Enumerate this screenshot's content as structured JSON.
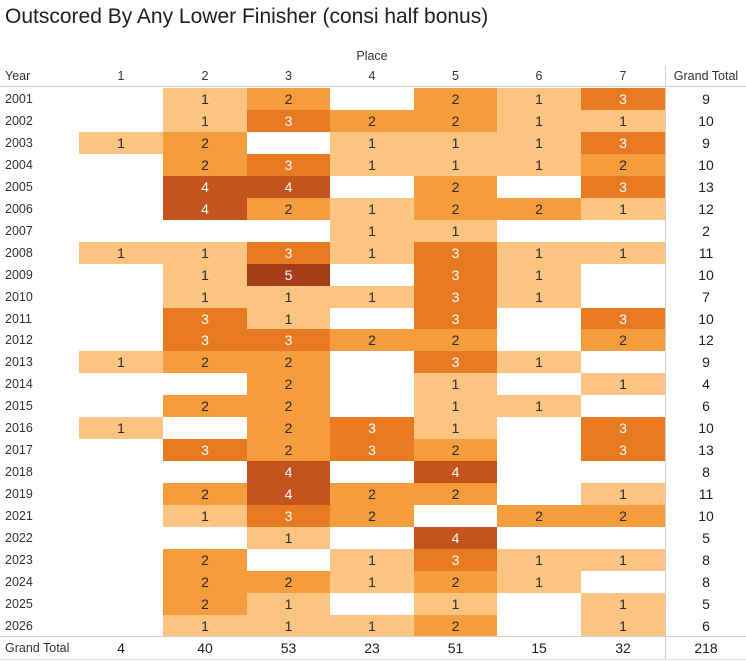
{
  "chart_data": {
    "type": "heatmap",
    "title": "Outscored By Any Lower Finisher (consi half bonus)",
    "x_axis_label": "Place",
    "y_axis_label": "Year",
    "grand_total_label": "Grand Total",
    "columns": [
      "1",
      "2",
      "3",
      "4",
      "5",
      "6",
      "7"
    ],
    "rows": [
      "2001",
      "2002",
      "2003",
      "2004",
      "2005",
      "2006",
      "2007",
      "2008",
      "2009",
      "2010",
      "2011",
      "2012",
      "2013",
      "2014",
      "2015",
      "2016",
      "2017",
      "2018",
      "2019",
      "2021",
      "2022",
      "2023",
      "2024",
      "2025",
      "2026"
    ],
    "values": [
      [
        null,
        1,
        2,
        null,
        2,
        1,
        3
      ],
      [
        null,
        1,
        3,
        2,
        2,
        1,
        1
      ],
      [
        1,
        2,
        null,
        1,
        1,
        1,
        3
      ],
      [
        null,
        2,
        3,
        1,
        1,
        1,
        2
      ],
      [
        null,
        4,
        4,
        null,
        2,
        null,
        3
      ],
      [
        null,
        4,
        2,
        1,
        2,
        2,
        1
      ],
      [
        null,
        null,
        null,
        1,
        1,
        null,
        null
      ],
      [
        1,
        1,
        3,
        1,
        3,
        1,
        1
      ],
      [
        null,
        1,
        5,
        null,
        3,
        1,
        null
      ],
      [
        null,
        1,
        1,
        1,
        3,
        1,
        null
      ],
      [
        null,
        3,
        1,
        null,
        3,
        null,
        3
      ],
      [
        null,
        3,
        3,
        2,
        2,
        null,
        2
      ],
      [
        1,
        2,
        2,
        null,
        3,
        1,
        null
      ],
      [
        null,
        null,
        2,
        null,
        1,
        null,
        1
      ],
      [
        null,
        2,
        2,
        null,
        1,
        1,
        null
      ],
      [
        1,
        null,
        2,
        3,
        1,
        null,
        3
      ],
      [
        null,
        3,
        2,
        3,
        2,
        null,
        3
      ],
      [
        null,
        null,
        4,
        null,
        4,
        null,
        null
      ],
      [
        null,
        2,
        4,
        2,
        2,
        null,
        1
      ],
      [
        null,
        1,
        3,
        2,
        null,
        2,
        2
      ],
      [
        null,
        null,
        1,
        null,
        4,
        null,
        null
      ],
      [
        null,
        2,
        null,
        1,
        3,
        1,
        1
      ],
      [
        null,
        2,
        2,
        1,
        2,
        1,
        null
      ],
      [
        null,
        2,
        1,
        null,
        1,
        null,
        1
      ],
      [
        null,
        1,
        1,
        1,
        2,
        null,
        1
      ]
    ],
    "row_totals": [
      9,
      10,
      9,
      10,
      13,
      12,
      2,
      11,
      10,
      7,
      10,
      12,
      9,
      4,
      6,
      10,
      13,
      8,
      11,
      10,
      5,
      8,
      8,
      5,
      6
    ],
    "column_totals": [
      4,
      40,
      53,
      23,
      51,
      15,
      32
    ],
    "grand_total": 218,
    "color_scale_legend": {
      "1": "light orange",
      "2": "medium orange",
      "3": "bright orange",
      "4": "brick orange",
      "5": "dark brick"
    }
  },
  "colors": {
    "v1": "#FBC481",
    "v2": "#F59C3D",
    "v3": "#E87A22",
    "v4": "#C4531E",
    "v5": "#A33E18",
    "grid": "#CFCFCF",
    "grid2": "#E0E0E0",
    "hdr-text": "#333333",
    "dark-text": "#2A2A2A",
    "light-text": "#FFFFFF",
    "total-text": "#1E1E1E"
  }
}
